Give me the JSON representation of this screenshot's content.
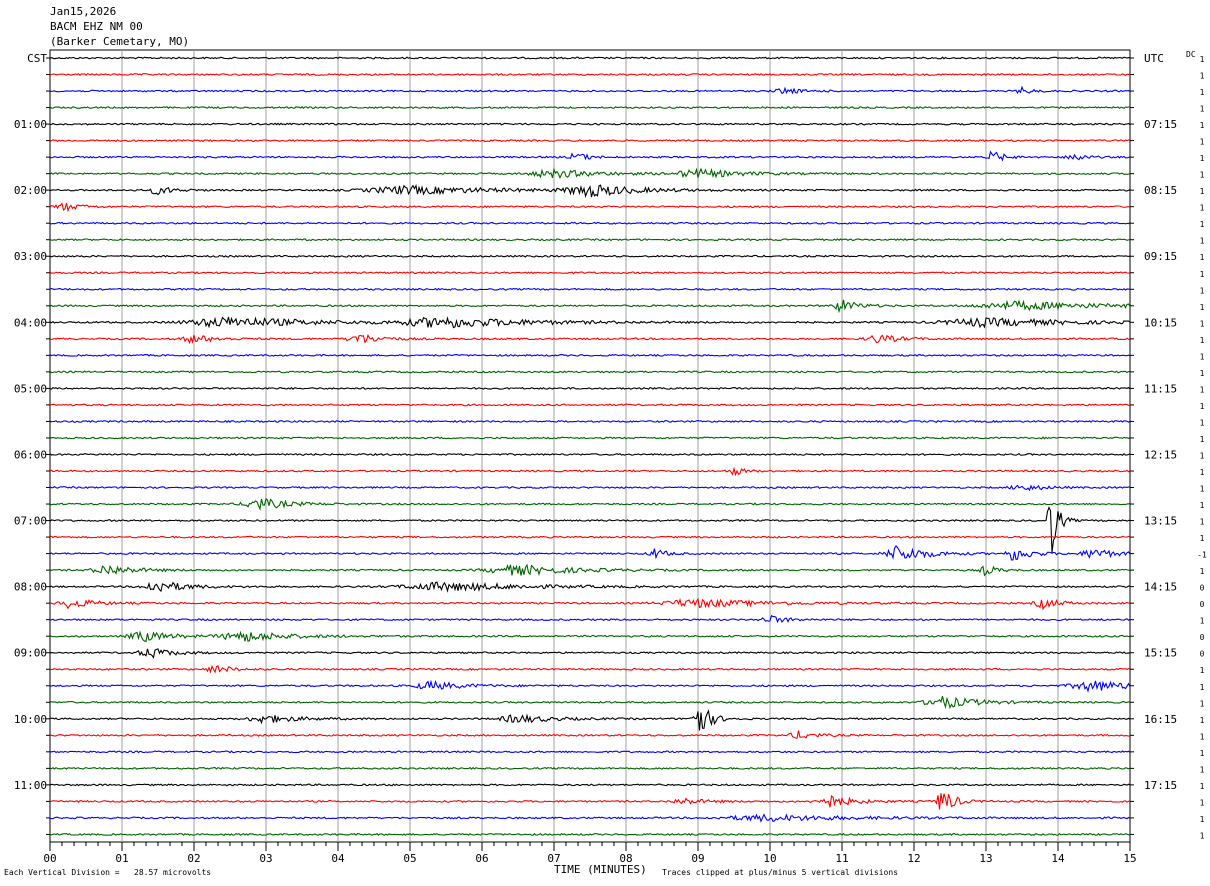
{
  "header": {
    "date": "Jan15,2026",
    "station": "BACM EHZ NM 00",
    "location": "(Barker Cemetary, MO)"
  },
  "left_zone_label": "CST",
  "right_zone_label": "UTC",
  "dc_label": "DC",
  "footer": {
    "scale_text": "Each Vertical Division =   28.57 microvolts",
    "clip_text": "Traces clipped at plus/minus 5 vertical divisions"
  },
  "chart_data": {
    "type": "line",
    "title": "",
    "xlabel": "TIME (MINUTES)",
    "xlim": [
      0,
      15
    ],
    "x_tick_labels": [
      "00",
      "01",
      "02",
      "03",
      "04",
      "05",
      "06",
      "07",
      "08",
      "09",
      "10",
      "11",
      "12",
      "13",
      "14",
      "15"
    ],
    "trace_colors": [
      "#000000",
      "#ff0000",
      "#0000ff",
      "#006400"
    ],
    "rows": 48,
    "left_hour_labels": [
      "CST",
      "01:00",
      "02:00",
      "03:00",
      "04:00",
      "05:00",
      "06:00",
      "07:00",
      "08:00",
      "09:00",
      "10:00",
      "11:00"
    ],
    "right_hour_labels": [
      "UTC",
      "07:15",
      "08:15",
      "09:15",
      "10:15",
      "11:15",
      "12:15",
      "13:15",
      "14:15",
      "15:15",
      "16:15",
      "17:15"
    ],
    "dc_offsets": [
      "1",
      "1",
      "1",
      "1",
      "1",
      "1",
      "1",
      "1",
      "1",
      "1",
      "1",
      "1",
      "1",
      "1",
      "1",
      "1",
      "1",
      "1",
      "1",
      "1",
      "1",
      "1",
      "1",
      "1",
      "1",
      "1",
      "1",
      "1",
      "1",
      "1",
      "-1",
      "1",
      "0",
      "0",
      "1",
      "0",
      "0",
      "1",
      "1",
      "1",
      "1",
      "1",
      "1",
      "1",
      "1",
      "1",
      "1",
      "1"
    ],
    "events": [
      {
        "row": 2,
        "minute": 10.2,
        "amp": 3,
        "width": 0.3
      },
      {
        "row": 2,
        "minute": 13.5,
        "amp": 3,
        "width": 0.2
      },
      {
        "row": 6,
        "minute": 7.3,
        "amp": 5,
        "width": 0.2
      },
      {
        "row": 6,
        "minute": 13.1,
        "amp": 6,
        "width": 0.2
      },
      {
        "row": 6,
        "minute": 14.2,
        "amp": 5,
        "width": 0.2
      },
      {
        "row": 7,
        "minute": 7.0,
        "amp": 4,
        "width": 0.8
      },
      {
        "row": 7,
        "minute": 9.0,
        "amp": 4,
        "width": 0.8
      },
      {
        "row": 8,
        "minute": 7.5,
        "amp": 6,
        "width": 0.8
      },
      {
        "row": 8,
        "minute": 5.0,
        "amp": 4,
        "width": 1.5
      },
      {
        "row": 8,
        "minute": 1.5,
        "amp": 4,
        "width": 0.3
      },
      {
        "row": 9,
        "minute": 0.2,
        "amp": 4,
        "width": 0.3
      },
      {
        "row": 15,
        "minute": 11.0,
        "amp": 6,
        "width": 0.3
      },
      {
        "row": 15,
        "minute": 13.5,
        "amp": 4,
        "width": 1.5
      },
      {
        "row": 16,
        "minute": 2.5,
        "amp": 5,
        "width": 1.5
      },
      {
        "row": 16,
        "minute": 5.5,
        "amp": 5,
        "width": 1.5
      },
      {
        "row": 16,
        "minute": 13.0,
        "amp": 4,
        "width": 1.5
      },
      {
        "row": 17,
        "minute": 2.0,
        "amp": 4,
        "width": 0.4
      },
      {
        "row": 17,
        "minute": 4.3,
        "amp": 5,
        "width": 0.4
      },
      {
        "row": 17,
        "minute": 11.5,
        "amp": 4,
        "width": 0.4
      },
      {
        "row": 25,
        "minute": 9.5,
        "amp": 4,
        "width": 0.2
      },
      {
        "row": 26,
        "minute": 13.5,
        "amp": 3,
        "width": 0.4
      },
      {
        "row": 27,
        "minute": 2.9,
        "amp": 6,
        "width": 0.5
      },
      {
        "row": 28,
        "minute": 13.9,
        "amp": 40,
        "width": 0.12
      },
      {
        "row": 30,
        "minute": 11.8,
        "amp": 8,
        "width": 0.5
      },
      {
        "row": 30,
        "minute": 13.4,
        "amp": 7,
        "width": 0.3
      },
      {
        "row": 30,
        "minute": 8.4,
        "amp": 5,
        "width": 0.2
      },
      {
        "row": 30,
        "minute": 14.5,
        "amp": 5,
        "width": 0.4
      },
      {
        "row": 31,
        "minute": 0.8,
        "amp": 5,
        "width": 0.5
      },
      {
        "row": 31,
        "minute": 6.5,
        "amp": 5,
        "width": 1.0
      },
      {
        "row": 31,
        "minute": 13.0,
        "amp": 5,
        "width": 0.2
      },
      {
        "row": 32,
        "minute": 1.5,
        "amp": 6,
        "width": 0.5
      },
      {
        "row": 32,
        "minute": 5.5,
        "amp": 4,
        "width": 1.5
      },
      {
        "row": 33,
        "minute": 0.3,
        "amp": 5,
        "width": 0.4
      },
      {
        "row": 33,
        "minute": 13.8,
        "amp": 5,
        "width": 0.3
      },
      {
        "row": 33,
        "minute": 9.0,
        "amp": 4,
        "width": 1.2
      },
      {
        "row": 34,
        "minute": 10.0,
        "amp": 4,
        "width": 0.3
      },
      {
        "row": 35,
        "minute": 1.3,
        "amp": 5,
        "width": 0.5
      },
      {
        "row": 35,
        "minute": 2.7,
        "amp": 5,
        "width": 0.8
      },
      {
        "row": 36,
        "minute": 1.4,
        "amp": 5,
        "width": 0.4
      },
      {
        "row": 37,
        "minute": 2.3,
        "amp": 4,
        "width": 0.3
      },
      {
        "row": 38,
        "minute": 5.3,
        "amp": 4,
        "width": 0.6
      },
      {
        "row": 38,
        "minute": 14.5,
        "amp": 5,
        "width": 0.8
      },
      {
        "row": 39,
        "minute": 12.4,
        "amp": 6,
        "width": 0.6
      },
      {
        "row": 40,
        "minute": 9.0,
        "amp": 20,
        "width": 0.2
      },
      {
        "row": 40,
        "minute": 3.0,
        "amp": 4,
        "width": 0.6
      },
      {
        "row": 40,
        "minute": 6.5,
        "amp": 4,
        "width": 0.6
      },
      {
        "row": 41,
        "minute": 10.4,
        "amp": 4,
        "width": 0.3
      },
      {
        "row": 45,
        "minute": 12.4,
        "amp": 14,
        "width": 0.2
      },
      {
        "row": 45,
        "minute": 10.8,
        "amp": 7,
        "width": 0.4
      },
      {
        "row": 45,
        "minute": 8.8,
        "amp": 3,
        "width": 0.4
      },
      {
        "row": 46,
        "minute": 10.0,
        "amp": 3,
        "width": 1.5
      }
    ]
  }
}
